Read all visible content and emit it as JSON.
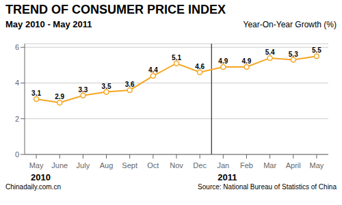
{
  "chart_data": {
    "type": "line",
    "title": "TREND OF CONSUMER PRICE INDEX",
    "subtitle": "May 2010 - May 2011",
    "y_label": "Year-On-Year Growth (%)",
    "categories": [
      "May",
      "June",
      "July",
      "Aug",
      "Sept",
      "Oct",
      "Nov",
      "Dec",
      "Jan",
      "Feb",
      "Mar",
      "April",
      "May"
    ],
    "values": [
      3.1,
      2.9,
      3.3,
      3.5,
      3.6,
      4.4,
      5.1,
      4.6,
      4.9,
      4.9,
      5.4,
      5.3,
      5.5
    ],
    "color": "#F5A623",
    "ylim": [
      0,
      6.2
    ],
    "yticks": [
      0,
      2,
      4,
      6
    ],
    "grid": true,
    "data_labels": true,
    "annotations": [
      {
        "text": "2010",
        "x": 0
      },
      {
        "text": "2011",
        "x": 8
      },
      {
        "text": "Chinadaily.com.cn"
      },
      {
        "text": "Source: National Bureau of Statistics of China"
      }
    ]
  }
}
